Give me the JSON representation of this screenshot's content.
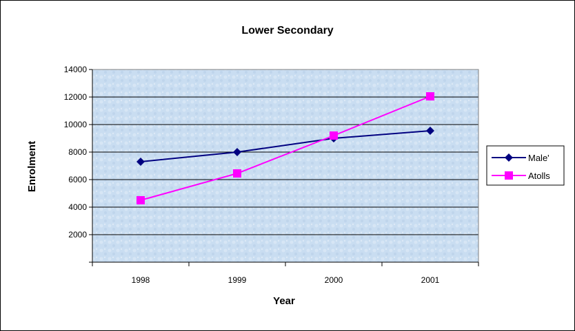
{
  "chart_data": {
    "type": "line",
    "title": "Lower Secondary",
    "xlabel": "Year",
    "ylabel": "Enrolment",
    "categories": [
      "1998",
      "1999",
      "2000",
      "2001"
    ],
    "ylim": [
      0,
      14000
    ],
    "yticks": [
      2000,
      4000,
      6000,
      8000,
      10000,
      12000,
      14000
    ],
    "grid": true,
    "legend_position": "right",
    "series": [
      {
        "name": "Male'",
        "values": [
          7300,
          8000,
          9000,
          9550
        ],
        "color": "#000080",
        "marker": "diamond"
      },
      {
        "name": "Atolls",
        "values": [
          4500,
          6450,
          9200,
          12050
        ],
        "color": "#ff00ff",
        "marker": "square"
      }
    ],
    "plot_background": "#c8dcf0"
  }
}
